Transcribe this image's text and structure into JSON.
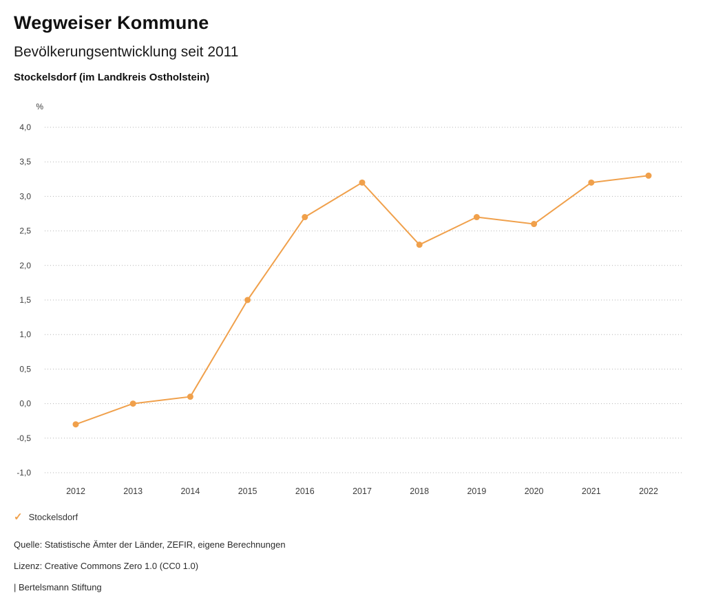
{
  "header": {
    "brand": "Wegweiser Kommune",
    "title": "Bevölkerungsentwicklung seit 2011",
    "subtitle": "Stockelsdorf (im Landkreis Ostholstein)"
  },
  "chart_data": {
    "type": "line",
    "title": "Bevölkerungsentwicklung seit 2011",
    "unit_label": "%",
    "x": [
      2012,
      2013,
      2014,
      2015,
      2016,
      2017,
      2018,
      2019,
      2020,
      2021,
      2022
    ],
    "series": [
      {
        "name": "Stockelsdorf",
        "color": "#F0A04B",
        "values": [
          -0.3,
          0.0,
          0.1,
          1.5,
          2.7,
          3.2,
          2.3,
          2.7,
          2.6,
          3.2,
          3.3
        ]
      }
    ],
    "ylim": [
      -1.0,
      4.0
    ],
    "ytick_step": 0.5,
    "ytick_labels": [
      "4,0",
      "3,5",
      "3,0",
      "2,5",
      "2,0",
      "1,5",
      "1,0",
      "0,5",
      "0,0",
      "-0,5",
      "-1,0"
    ],
    "grid": "horizontal-dotted",
    "legend_position": "bottom-left",
    "colors": {
      "line": "#F0A04B",
      "gridline": "#b3b3b3",
      "tick_text": "#3c3c3c"
    }
  },
  "legend": {
    "items": [
      {
        "label": "Stockelsdorf",
        "color": "#F0A04B",
        "marker": "check"
      }
    ]
  },
  "footer": {
    "source": "Quelle: Statistische Ämter der Länder, ZEFIR, eigene Berechnungen",
    "license": "Lizenz: Creative Commons Zero 1.0 (CC0 1.0)",
    "attribution": "| Bertelsmann Stiftung"
  }
}
